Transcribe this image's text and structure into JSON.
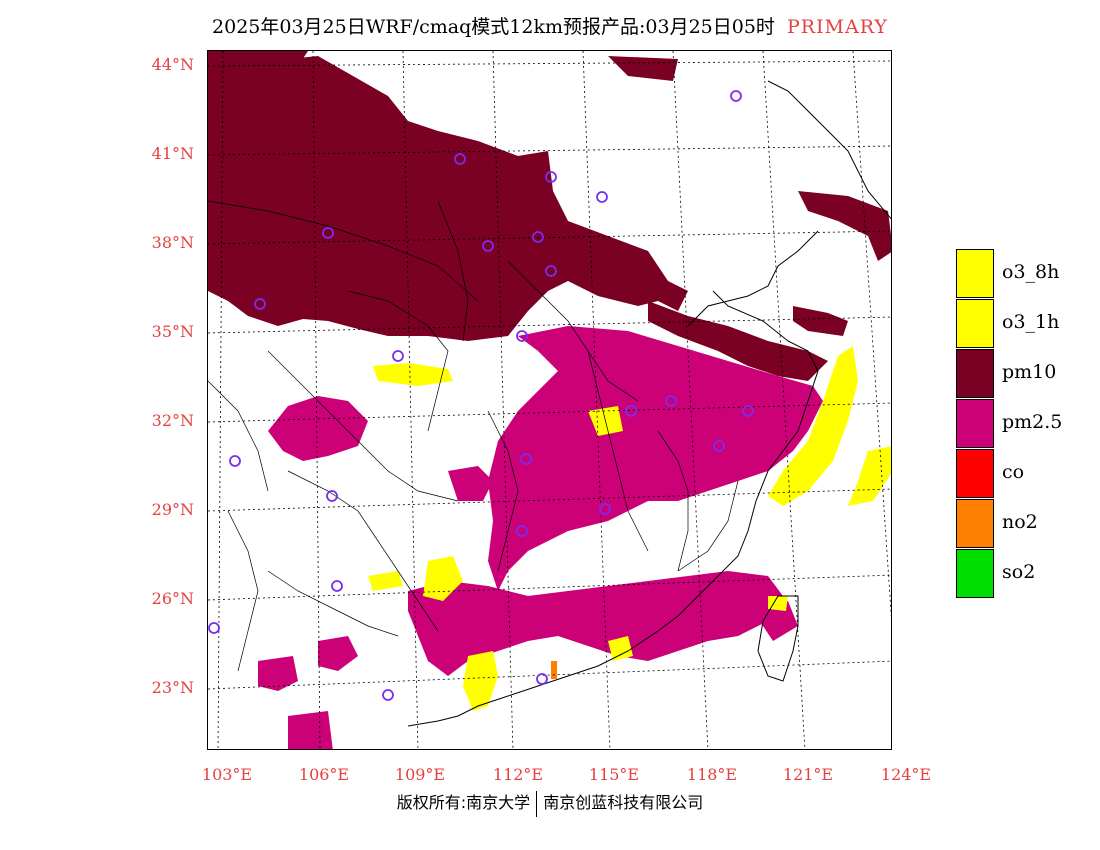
{
  "header": {
    "title": "2025年03月25日WRF/cmaq模式12km预报产品:03月25日05时",
    "primary_label": "PRIMARY"
  },
  "map": {
    "latitude_labels": [
      "44°N",
      "41°N",
      "38°N",
      "35°N",
      "32°N",
      "29°N",
      "26°N",
      "23°N"
    ],
    "longitude_labels": [
      "103°E",
      "106°E",
      "109°E",
      "112°E",
      "115°E",
      "118°E",
      "121°E",
      "124°E"
    ]
  },
  "legend": {
    "items": [
      {
        "label": "o3_8h",
        "color": "#ffff00"
      },
      {
        "label": "o3_1h",
        "color": "#ffff00"
      },
      {
        "label": "pm10",
        "color": "#7a0024"
      },
      {
        "label": "pm2.5",
        "color": "#cc0077"
      },
      {
        "label": "co",
        "color": "#ff0000"
      },
      {
        "label": "no2",
        "color": "#ff8000"
      },
      {
        "label": "so2",
        "color": "#00dd00"
      }
    ]
  },
  "footer": {
    "left_text": "版权所有:南京大学",
    "right_text": "南京创蓝科技有限公司"
  }
}
